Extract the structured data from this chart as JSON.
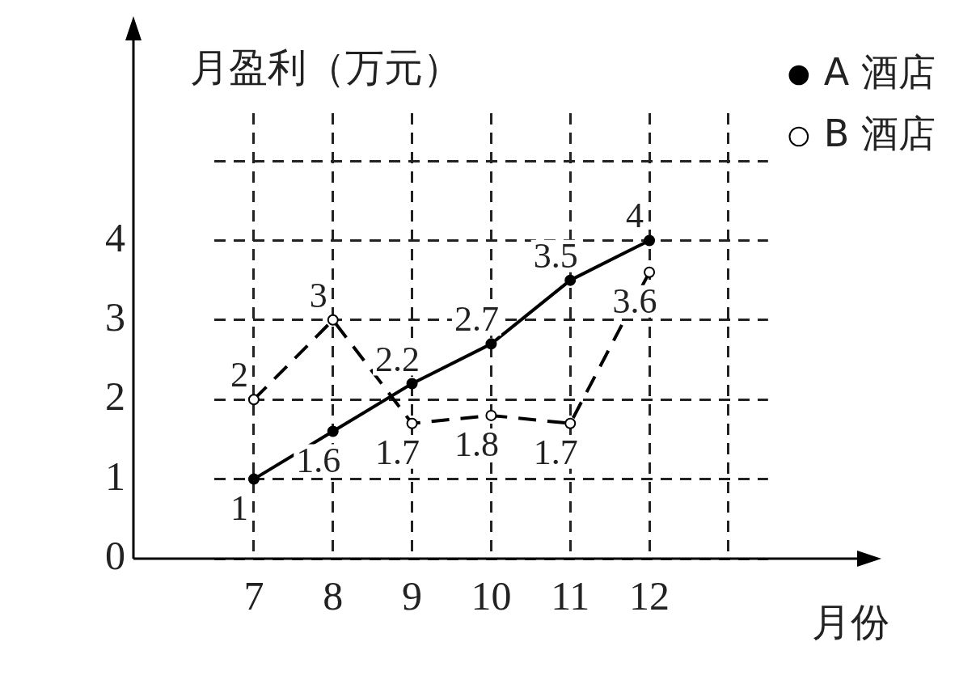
{
  "chart_data": {
    "type": "line",
    "xlabel": "月份",
    "ylabel": "月盈利（万元）",
    "categories": [
      "7",
      "8",
      "9",
      "10",
      "11",
      "12",
      null
    ],
    "series": [
      {
        "name": "A 酒店",
        "color": "#000000",
        "values": [
          1,
          1.6,
          2.2,
          2.7,
          3.5,
          4,
          null
        ],
        "marker": "circle",
        "line_style": "solid"
      },
      {
        "name": "B 酒店",
        "color": "#000000",
        "values": [
          2,
          3,
          1.7,
          1.8,
          1.7,
          3.6,
          null
        ],
        "marker": "circle",
        "line_style": "dashed"
      }
    ],
    "ylim": [
      0,
      5.6
    ],
    "yticks": [
      0,
      1,
      2,
      3,
      4,
      {
        "value": 5,
        "label": null
      }
    ],
    "grid": true,
    "legend": "right",
    "data_labels": true
  }
}
